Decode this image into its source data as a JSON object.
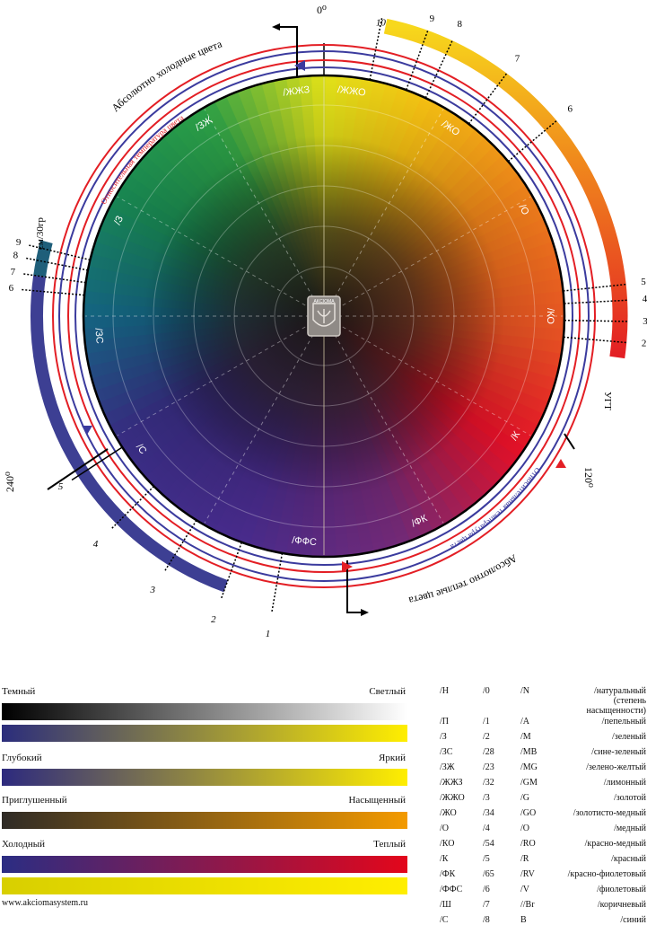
{
  "wheel": {
    "sectors": [
      {
        "label": "/ЖЖЗ",
        "angle": -7
      },
      {
        "label": "/ЖЖО",
        "angle": 7
      },
      {
        "label": "/ЖО",
        "angle": 34
      },
      {
        "label": "/О",
        "angle": 62
      },
      {
        "label": "/КО",
        "angle": 90
      },
      {
        "label": "/К",
        "angle": 122
      },
      {
        "label": "/ФК",
        "angle": 155
      },
      {
        "label": "/ФФС",
        "angle": 185
      },
      {
        "label": "/С",
        "angle": 234
      },
      {
        "label": "/ЗС",
        "angle": 265
      },
      {
        "label": "/З",
        "angle": 295
      },
      {
        "label": "/ЗЖ",
        "angle": 328
      }
    ],
    "degree_labels": {
      "zero": "0⁰",
      "one_twenty": "120⁰",
      "two_forty": "240⁰"
    },
    "curved_texts": {
      "abs_cold": "Абсолютно холодные цвета",
      "rel_temp_top": "Относительная температура цвета",
      "abs_warm": "Абсолютно теплые цвета",
      "rel_temp_bottom": "Относительная температура цвета"
    },
    "right_scale": {
      "unit": "УГТ",
      "numbers": [
        "10",
        "9",
        "8",
        "7",
        "6",
        "5",
        "4",
        "3",
        "2"
      ]
    },
    "left_scale": {
      "unit": "см/30гр",
      "numbers_top": [
        "9",
        "8",
        "7",
        "6"
      ],
      "numbers_bottom": [
        "5",
        "4",
        "3",
        "2",
        "1"
      ]
    },
    "colors": {
      "red_ring": "#e31e24",
      "blue_ring": "#3b3b9e",
      "cold_band": "#3d3f93",
      "warm_band_top": "#f7d81c",
      "warm_band_bottom": "#e31e24"
    }
  },
  "scales": [
    {
      "left": "Темный",
      "right": "Светлый",
      "colors": [
        "#000000",
        "#ffffff"
      ]
    },
    {
      "left": "",
      "right": "",
      "colors": [
        "#2b2d7c",
        "#ffee00"
      ]
    },
    {
      "left": "Глубокий",
      "right": "Яркий",
      "colors": [
        "#2d2a7e",
        "#ffee00"
      ]
    },
    {
      "left": "Приглушенный",
      "right": "Насыщенный",
      "colors": [
        "#2f2b26",
        "#f39a00"
      ]
    },
    {
      "left": "Холодный",
      "right": "Теплый",
      "colors": [
        "#2b2d83",
        "#e3061b"
      ]
    },
    {
      "left": "",
      "right": "",
      "colors": [
        "#d8cf00",
        "#ffee00"
      ]
    }
  ],
  "legend": [
    [
      "/Н",
      "/0",
      "/N",
      "/натуральный (степень насыщенности)"
    ],
    [
      "/П",
      "/1",
      "/A",
      "/пепельный"
    ],
    [
      "/З",
      "/2",
      "/M",
      "/зеленый"
    ],
    [
      "/ЗС",
      "/28",
      "/MB",
      "/сине-зеленый"
    ],
    [
      "/ЗЖ",
      "/23",
      "/MG",
      "/зелено-желтый"
    ],
    [
      "/ЖЖЗ",
      "/32",
      "/GM",
      "/лимонный"
    ],
    [
      "/ЖЖО",
      "/3",
      "/G",
      "/золотой"
    ],
    [
      "/ЖО",
      "/34",
      "/GO",
      "/золотисто-медный"
    ],
    [
      "/О",
      "/4",
      "/O",
      "/медный"
    ],
    [
      "/КО",
      "/54",
      "/RO",
      "/красно-медный"
    ],
    [
      "/К",
      "/5",
      "/R",
      "/красный"
    ],
    [
      "/ФК",
      "/65",
      "/RV",
      "/красно-фиолетовый"
    ],
    [
      "/ФФС",
      "/6",
      "/V",
      "/фиолетовый"
    ],
    [
      "/Ш",
      "/7",
      "//Br",
      "/коричневый"
    ],
    [
      "/С",
      "/8",
      "B",
      "/синий"
    ]
  ],
  "site": "www.akciomasystem.ru"
}
